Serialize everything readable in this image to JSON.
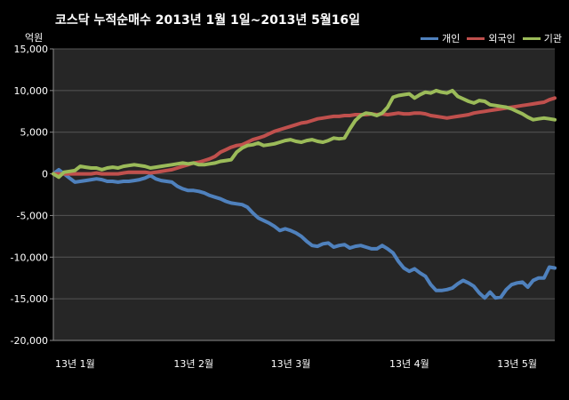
{
  "chart_data": {
    "type": "line",
    "title": "코스닥  누적순매수 2013년 1월 1일~2013년 5월16일",
    "ylabel": "억원",
    "xlabel": "",
    "ylim": [
      -20000,
      15000
    ],
    "yticks": [
      15000,
      10000,
      5000,
      0,
      -5000,
      -10000,
      -15000,
      -20000
    ],
    "ytick_labels": [
      "15,000",
      "10,000",
      "5,000",
      "0",
      "-5,000",
      "-10,000",
      "-15,000",
      "-20,000"
    ],
    "x_range": [
      0,
      93
    ],
    "x_tick_labels": [
      {
        "label": "13년 1월",
        "x": 0
      },
      {
        "label": "13년 2월",
        "x": 22
      },
      {
        "label": "13년 3월",
        "x": 40
      },
      {
        "label": "13년 4월",
        "x": 62
      },
      {
        "label": "13년 5월",
        "x": 82
      }
    ],
    "grid": true,
    "legend_position": "top-right",
    "background": "#262626",
    "series": [
      {
        "name": "개인",
        "color": "#4f81bd",
        "x": [
          0,
          1,
          2,
          3,
          4,
          5,
          6,
          7,
          8,
          9,
          10,
          11,
          12,
          13,
          14,
          15,
          16,
          17,
          18,
          19,
          20,
          21,
          22,
          23,
          24,
          25,
          26,
          27,
          28,
          29,
          30,
          31,
          32,
          33,
          34,
          35,
          36,
          37,
          38,
          39,
          40,
          41,
          42,
          43,
          44,
          45,
          46,
          47,
          48,
          49,
          50,
          51,
          52,
          53,
          54,
          55,
          56,
          57,
          58,
          59,
          60,
          61,
          62,
          63,
          64,
          65,
          66,
          67,
          68,
          69,
          70,
          71,
          72,
          73,
          74,
          75,
          76,
          77,
          78,
          79,
          80,
          81,
          82,
          83,
          84,
          85,
          86,
          87,
          88,
          89,
          90,
          91,
          92,
          93
        ],
        "values": [
          0,
          500,
          0,
          -500,
          -1000,
          -900,
          -800,
          -700,
          -600,
          -700,
          -900,
          -900,
          -1000,
          -900,
          -900,
          -800,
          -700,
          -500,
          -200,
          -600,
          -800,
          -900,
          -1000,
          -1500,
          -1800,
          -2000,
          -2000,
          -2100,
          -2300,
          -2600,
          -2800,
          -3000,
          -3300,
          -3500,
          -3600,
          -3700,
          -4000,
          -4700,
          -5300,
          -5600,
          -5900,
          -6300,
          -6800,
          -6600,
          -6800,
          -7100,
          -7500,
          -8100,
          -8600,
          -8700,
          -8400,
          -8300,
          -8800,
          -8600,
          -8500,
          -8900,
          -8700,
          -8600,
          -8800,
          -9000,
          -9000,
          -8600,
          -9000,
          -9500,
          -10500,
          -11300,
          -11700,
          -11400,
          -11900,
          -12300,
          -13300,
          -14000,
          -14000,
          -13900,
          -13700,
          -13200,
          -12800,
          -13100,
          -13500,
          -14300,
          -14900,
          -14200,
          -14900,
          -14800,
          -13900,
          -13300,
          -13100,
          -13000,
          -13600,
          -12800,
          -12500,
          -12500,
          -11200,
          -11300
        ]
      },
      {
        "name": "외국인",
        "color": "#c0504d",
        "x": [
          0,
          1,
          2,
          3,
          4,
          5,
          6,
          7,
          8,
          9,
          10,
          11,
          12,
          13,
          14,
          15,
          16,
          17,
          18,
          19,
          20,
          21,
          22,
          23,
          24,
          25,
          26,
          27,
          28,
          29,
          30,
          31,
          32,
          33,
          34,
          35,
          36,
          37,
          38,
          39,
          40,
          41,
          42,
          43,
          44,
          45,
          46,
          47,
          48,
          49,
          50,
          51,
          52,
          53,
          54,
          55,
          56,
          57,
          58,
          59,
          60,
          61,
          62,
          63,
          64,
          65,
          66,
          67,
          68,
          69,
          70,
          71,
          72,
          73,
          74,
          75,
          76,
          77,
          78,
          79,
          80,
          81,
          82,
          83,
          84,
          85,
          86,
          87,
          88,
          89,
          90,
          91,
          92,
          93
        ],
        "values": [
          0,
          0,
          0,
          0,
          0,
          0,
          0,
          0,
          100,
          0,
          0,
          0,
          0,
          100,
          200,
          200,
          200,
          200,
          100,
          200,
          300,
          400,
          500,
          700,
          900,
          1100,
          1300,
          1400,
          1600,
          1800,
          2100,
          2600,
          2900,
          3200,
          3400,
          3500,
          3800,
          4100,
          4300,
          4500,
          4800,
          5100,
          5300,
          5500,
          5700,
          5900,
          6100,
          6200,
          6400,
          6600,
          6700,
          6800,
          6900,
          6900,
          7000,
          7000,
          7100,
          7100,
          7100,
          7200,
          7100,
          7200,
          7100,
          7200,
          7300,
          7200,
          7200,
          7300,
          7300,
          7200,
          7000,
          6900,
          6800,
          6700,
          6800,
          6900,
          7000,
          7100,
          7300,
          7400,
          7500,
          7600,
          7700,
          7800,
          7900,
          8000,
          8100,
          8200,
          8300,
          8400,
          8500,
          8600,
          8900,
          9100
        ]
      },
      {
        "name": "기관",
        "color": "#9bbb59",
        "x": [
          0,
          1,
          2,
          3,
          4,
          5,
          6,
          7,
          8,
          9,
          10,
          11,
          12,
          13,
          14,
          15,
          16,
          17,
          18,
          19,
          20,
          21,
          22,
          23,
          24,
          25,
          26,
          27,
          28,
          29,
          30,
          31,
          32,
          33,
          34,
          35,
          36,
          37,
          38,
          39,
          40,
          41,
          42,
          43,
          44,
          45,
          46,
          47,
          48,
          49,
          50,
          51,
          52,
          53,
          54,
          55,
          56,
          57,
          58,
          59,
          60,
          61,
          62,
          63,
          64,
          65,
          66,
          67,
          68,
          69,
          70,
          71,
          72,
          73,
          74,
          75,
          76,
          77,
          78,
          79,
          80,
          81,
          82,
          83,
          84,
          85,
          86,
          87,
          88,
          89,
          90,
          91,
          92,
          93
        ],
        "values": [
          0,
          -400,
          200,
          300,
          400,
          900,
          800,
          700,
          700,
          500,
          700,
          800,
          700,
          900,
          1000,
          1100,
          1000,
          900,
          700,
          800,
          900,
          1000,
          1100,
          1200,
          1300,
          1200,
          1300,
          1100,
          1100,
          1200,
          1300,
          1500,
          1600,
          1700,
          2600,
          3100,
          3400,
          3500,
          3700,
          3400,
          3500,
          3600,
          3800,
          4000,
          4100,
          3900,
          3800,
          4000,
          4100,
          3900,
          3800,
          4000,
          4300,
          4200,
          4300,
          5400,
          6400,
          7000,
          7300,
          7200,
          7000,
          7300,
          8000,
          9200,
          9400,
          9500,
          9600,
          9100,
          9500,
          9800,
          9700,
          10000,
          9800,
          9700,
          10000,
          9300,
          9000,
          8700,
          8500,
          8800,
          8700,
          8300,
          8200,
          8100,
          8000,
          7800,
          7500,
          7200,
          6800,
          6500,
          6600,
          6700,
          6600,
          6500
        ]
      }
    ]
  }
}
